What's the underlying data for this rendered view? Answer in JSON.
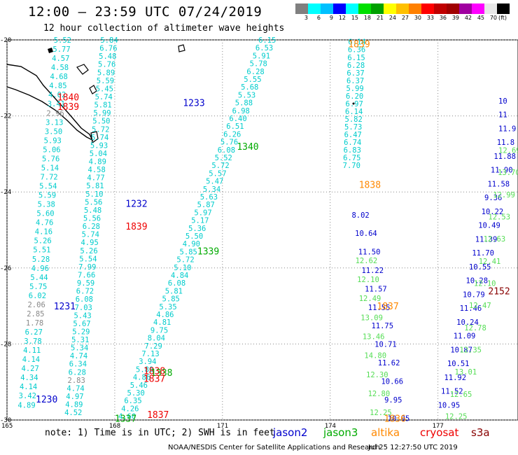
{
  "header": {
    "title": "12:00 – 23:59 UTC 07/24/2019",
    "subtitle": "12 hour collection of altimeter wave heights"
  },
  "legend": {
    "unit": "(ft)",
    "colors": [
      "#808080",
      "#00ffff",
      "#00c0ff",
      "#0000ff",
      "#00ffff",
      "#00e000",
      "#00a000",
      "#ffff00",
      "#ffc000",
      "#ff8000",
      "#ff0000",
      "#c00000",
      "#a00000",
      "#a000a0",
      "#ff00ff",
      "#e8e8e8",
      "#000000"
    ],
    "labels": [
      "3",
      "6",
      "9",
      "12",
      "15",
      "18",
      "21",
      "24",
      "27",
      "30",
      "33",
      "36",
      "39",
      "42",
      "45",
      "70"
    ]
  },
  "map": {
    "lat_ticks": [
      "-20",
      "-22",
      "-24",
      "-26",
      "-28",
      "-30"
    ],
    "lon_ticks": [
      "165",
      "168",
      "171",
      "174",
      "177"
    ],
    "lat_range": [
      -30,
      -20
    ],
    "lon_range": [
      165,
      179
    ],
    "satellite_colors": {
      "jason2": "#0000cc",
      "jason3": "#00aa00",
      "altika": "#ff8800",
      "cryosat": "#ee0000",
      "s3a": "#880000",
      "low": "#888888",
      "cyan": "#00cccc",
      "light_green": "#55dd55"
    }
  },
  "timestamps": [
    {
      "text": "1840",
      "sat": "cryosat",
      "lon": 166.4,
      "lat": -21.5
    },
    {
      "text": "1839",
      "sat": "cryosat",
      "lon": 166.4,
      "lat": -21.75
    },
    {
      "text": "1233",
      "sat": "jason2",
      "lon": 169.9,
      "lat": -21.65
    },
    {
      "text": "1340",
      "sat": "jason3",
      "lon": 171.4,
      "lat": -22.8
    },
    {
      "text": "1839",
      "sat": "altika",
      "lon": 174.5,
      "lat": -20.1
    },
    {
      "text": "1838",
      "sat": "altika",
      "lon": 174.8,
      "lat": -23.8
    },
    {
      "text": "1232",
      "sat": "jason2",
      "lon": 168.3,
      "lat": -24.3
    },
    {
      "text": "1839",
      "sat": "cryosat",
      "lon": 168.3,
      "lat": -24.9
    },
    {
      "text": "1339",
      "sat": "jason3",
      "lon": 170.3,
      "lat": -25.55
    },
    {
      "text": "1231",
      "sat": "jason2",
      "lon": 166.3,
      "lat": -27.0
    },
    {
      "text": "1837",
      "sat": "altika",
      "lon": 175.3,
      "lat": -27.0
    },
    {
      "text": "2152",
      "sat": "s3a",
      "lon": 178.4,
      "lat": -26.6
    },
    {
      "text": "1838",
      "sat": "cryosat",
      "lon": 168.8,
      "lat": -28.7
    },
    {
      "text": "1338",
      "sat": "jason3",
      "lon": 169.0,
      "lat": -28.75
    },
    {
      "text": "1837",
      "sat": "cryosat",
      "lon": 168.8,
      "lat": -28.9
    },
    {
      "text": "1230",
      "sat": "jason2",
      "lon": 165.8,
      "lat": -29.45
    },
    {
      "text": "1836",
      "sat": "altika",
      "lon": 175.5,
      "lat": -29.95
    },
    {
      "text": "1837",
      "sat": "cryosat",
      "lon": 168.9,
      "lat": -29.85
    },
    {
      "text": "1337",
      "sat": "jason3",
      "lon": 168.0,
      "lat": -29.95
    }
  ],
  "tracks": [
    {
      "name": "altika",
      "color": "cyan",
      "lon0": 174.5,
      "lat0": -20.05,
      "lon1": 174.35,
      "lat1": -23.3,
      "values": [
        "6.14",
        "6.36",
        "6.15",
        "6.28",
        "6.37",
        "6.37",
        "5.99",
        "6.20",
        "6.97",
        "6.14",
        "5.82",
        "5.73",
        "6.47",
        "6.74",
        "6.83",
        "6.75",
        "7.70"
      ]
    },
    {
      "name": "jason3-b",
      "color": "cyan",
      "lon0": 172.0,
      "lat0": -20.0,
      "lon1": 168.1,
      "lat1": -29.9,
      "values": [
        "6.15",
        "6.53",
        "5.91",
        "5.78",
        "6.28",
        "5.55",
        "5.68",
        "5.53",
        "5.88",
        "6.98",
        "6.40",
        "6.51",
        "6.26",
        "5.76",
        "6.08",
        "5.52",
        "5.72",
        "5.57",
        "5.47",
        "5.34",
        "5.63",
        "5.87",
        "5.97",
        "5.17",
        "5.36",
        "5.50",
        "4.90",
        "5.85",
        "5.72",
        "5.10",
        "4.84",
        "6.08",
        "5.81",
        "5.85",
        "5.35",
        "4.86",
        "4.81",
        "9.75",
        "8.04",
        "7.29",
        "7.13",
        "3.94",
        "5.80",
        "4.86",
        "5.46",
        "5.30",
        "6.35",
        "4.26",
        "4.60"
      ]
    },
    {
      "name": "cryosat-a",
      "color": "cyan",
      "lon0": 167.6,
      "lat0": -20.0,
      "lon1": 166.6,
      "lat1": -29.8,
      "values": [
        "5.84",
        "6.76",
        "5.48",
        "5.76",
        "5.89",
        "5.59",
        "5.45",
        "5.74",
        "5.81",
        "5.99",
        "5.50",
        "5.72",
        "5.74",
        "5.93",
        "5.04",
        "4.89",
        "4.58",
        "4.77",
        "5.81",
        "5.10",
        "5.56",
        "5.48",
        "5.56",
        "6.28",
        "5.74",
        "4.95",
        "5.26",
        "5.54",
        "7.99",
        "7.66",
        "9.59",
        "6.72",
        "6.08",
        "7.03",
        "5.43",
        "5.67",
        "5.29",
        "5.31",
        "5.34",
        "4.74",
        "6.34",
        "6.28",
        "2.83",
        "4.74",
        "4.97",
        "4.89",
        "4.52"
      ]
    },
    {
      "name": "jason2-a",
      "color": "cyan",
      "lon0": 166.3,
      "lat0": -20.0,
      "lon1": 165.3,
      "lat1": -29.6,
      "values": [
        "5.52",
        "5.77",
        "4.57",
        "4.58",
        "4.68",
        "4.85",
        "4.02",
        "3.41",
        "2.96",
        "3.13",
        "3.50",
        "5.93",
        "5.06",
        "5.76",
        "5.14",
        "7.72",
        "5.54",
        "5.59",
        "5.38",
        "5.60",
        "4.76",
        "4.16",
        "5.26",
        "5.51",
        "5.28",
        "4.96",
        "5.44",
        "5.75",
        "6.02",
        "2.06",
        "2.85",
        "1.78",
        "6.27",
        "3.78",
        "4.11",
        "4.14",
        "4.27",
        "4.34",
        "4.14",
        "3.42",
        "4.89"
      ]
    },
    {
      "name": "jason3-far",
      "color": "light_green",
      "lon0": 174.7,
      "lat0": -25.8,
      "lon1": 175.1,
      "lat1": -29.8,
      "values": [
        "12.62",
        "12.10",
        "12.49",
        "13.09",
        "13.46",
        "14.80",
        "12.30",
        "12.80",
        "12.25"
      ]
    },
    {
      "name": "jason2-far",
      "color": "jason2",
      "lon0": 174.6,
      "lat0": -24.6,
      "lon1": 175.6,
      "lat1": -29.95,
      "values": [
        "8.02",
        "10.64",
        "11.50",
        "11.22",
        "11.57",
        "11.55",
        "11.75",
        "10.71",
        "11.62",
        "10.66",
        "9.95",
        "10.95"
      ]
    },
    {
      "name": "cryosat-far",
      "color": "jason2",
      "lon0": 178.9,
      "lat0": -21.6,
      "lon1": 177.0,
      "lat1": -29.6,
      "values": [
        "10",
        "11",
        "11.9",
        "11.8",
        "11.88",
        "11.90",
        "11.58",
        "9.36",
        "10.22",
        "10.49",
        "11.39",
        "11.70",
        "10.55",
        "10.28",
        "10.79",
        "11.46",
        "10.24",
        "11.09",
        "10.87",
        "10.51",
        "11.92",
        "11.52",
        "10.95"
      ]
    },
    {
      "name": "jason3-right",
      "color": "light_green",
      "lon0": 178.8,
      "lat0": -22.9,
      "lon1": 177.2,
      "lat1": -29.9,
      "values": [
        "12.69",
        "13.70",
        "12.99",
        "12.53",
        "12.63",
        "12.41",
        "12.10",
        "12.47",
        "12.78",
        "12.35",
        "13.01",
        "12.65",
        "12.25"
      ]
    }
  ],
  "footer": {
    "note": "note: 1) Time is in UTC; 2) SWH is in feet",
    "satellites": [
      {
        "label": "jason2",
        "color": "#0000cc"
      },
      {
        "label": "jason3",
        "color": "#00aa00"
      },
      {
        "label": "altika",
        "color": "#ff8800"
      },
      {
        "label": "cryosat",
        "color": "#ee0000"
      },
      {
        "label": "s3a",
        "color": "#880000"
      }
    ],
    "credit": "NOAA/NESDIS Center for Satellite Applications and Research",
    "generated": "Jul 25 12:27:50 UTC 2019"
  }
}
